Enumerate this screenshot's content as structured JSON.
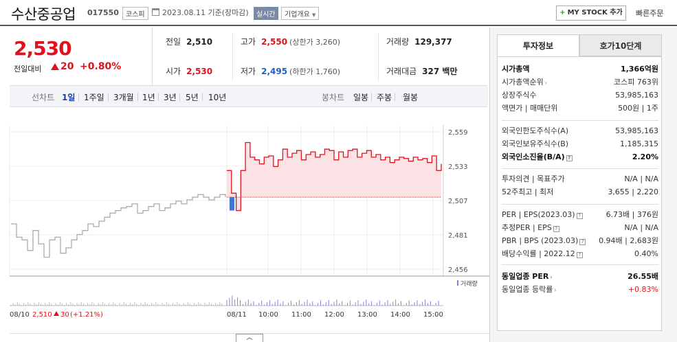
{
  "header": {
    "title": "수산중공업",
    "code": "017550",
    "market": "코스피",
    "date": "2023.08.11 기준(장마감)",
    "realtime": "실시간",
    "company_info": "기업개요",
    "mystock_label": "MY STOCK 추가",
    "quick_order": "빠른주문"
  },
  "price": {
    "now": "2,530",
    "compare_label": "전일대비",
    "change": "20",
    "rate": "+0.80%"
  },
  "quotes": {
    "prev_label": "전일",
    "prev": "2,510",
    "high_label": "고가",
    "high": "2,550",
    "upper_limit": "(상한가 3,260)",
    "volume_label": "거래량",
    "volume": "129,377",
    "open_label": "시가",
    "open": "2,530",
    "low_label": "저가",
    "low": "2,495",
    "lower_limit": "(하한가 1,760)",
    "amount_label": "거래대금",
    "amount": "327 백만"
  },
  "toolbar": {
    "line_label": "선차트",
    "periods": [
      "1일",
      "1주일",
      "3개월",
      "1년",
      "3년",
      "5년",
      "10년"
    ],
    "candle_label": "봉차트",
    "candles": [
      "일봉",
      "주봉",
      "월봉"
    ]
  },
  "chart_data": {
    "type": "line",
    "yticks": [
      "2,559",
      "2,533",
      "2,507",
      "2,481",
      "2,456"
    ],
    "ylim": [
      2456,
      2559
    ],
    "xticks": [
      "08/11",
      "10:00",
      "11:00",
      "12:00",
      "13:00",
      "14:00",
      "15:00"
    ],
    "volume_legend": "거래량",
    "prev_day_label": "08/10",
    "prev_day_close": "2,510",
    "prev_day_change": "30",
    "prev_day_rate": "(+1.21%)",
    "reference_price": 2510,
    "prev_day_series": [
      2490,
      2480,
      2478,
      2470,
      2485,
      2475,
      2465,
      2478,
      2480,
      2468,
      2472,
      2478,
      2482,
      2485,
      2490,
      2488,
      2492,
      2495,
      2498,
      2500,
      2502,
      2503,
      2505,
      2498,
      2500,
      2503,
      2505,
      2500,
      2502,
      2505,
      2507,
      2505,
      2508,
      2510,
      2512,
      2510,
      2508,
      2510,
      2512,
      2510
    ],
    "today_series": [
      2530,
      2513,
      2500,
      2530,
      2551,
      2540,
      2538,
      2535,
      2540,
      2541,
      2533,
      2538,
      2546,
      2540,
      2543,
      2545,
      2538,
      2542,
      2544,
      2540,
      2542,
      2546,
      2545,
      2538,
      2544,
      2540,
      2545,
      2546,
      2540,
      2543,
      2545,
      2540,
      2542,
      2538,
      2540,
      2536,
      2538,
      2540,
      2539,
      2537,
      2540,
      2538,
      2539,
      2536,
      2541,
      2530,
      2535
    ]
  },
  "info": {
    "tab_invest": "투자정보",
    "tab_hoga": "호가10단계",
    "rows1": [
      {
        "l": "시가총액",
        "r": "1,366억원"
      },
      {
        "l": "시가총액순위",
        "r": "코스피 763위"
      },
      {
        "l": "상장주식수",
        "r": "53,985,163"
      },
      {
        "l": "액면가 | 매매단위",
        "r": "500원 | 1주"
      }
    ],
    "rows2": [
      {
        "l": "외국인한도주식수(A)",
        "r": "53,985,163"
      },
      {
        "l": "외국인보유주식수(B)",
        "r": "1,185,315"
      },
      {
        "l": "외국인소진율(B/A)",
        "r": "2.20%"
      }
    ],
    "rows3": [
      {
        "l": "투자의견 | 목표주가",
        "r": "N/A | N/A"
      },
      {
        "l": "52주최고 | 최저",
        "r": "3,655 | 2,220"
      }
    ],
    "rows4": [
      {
        "l": "PER | EPS(2023.03)",
        "r": "6.73배 | 376원"
      },
      {
        "l": "추정PER | EPS",
        "r": "N/A | N/A"
      },
      {
        "l": "PBR | BPS (2023.03)",
        "r": "0.94배 | 2,683원"
      },
      {
        "l": "배당수익률 | 2022.12",
        "r": "0.40%"
      }
    ],
    "rows5": [
      {
        "l": "동일업종 PER",
        "r": "26.55배"
      },
      {
        "l": "동일업종 등락률",
        "r": "+0.83%"
      }
    ]
  },
  "colors": {
    "up": "#e0111b",
    "down": "#1e5fc8",
    "volume": "#8b7fd6"
  }
}
